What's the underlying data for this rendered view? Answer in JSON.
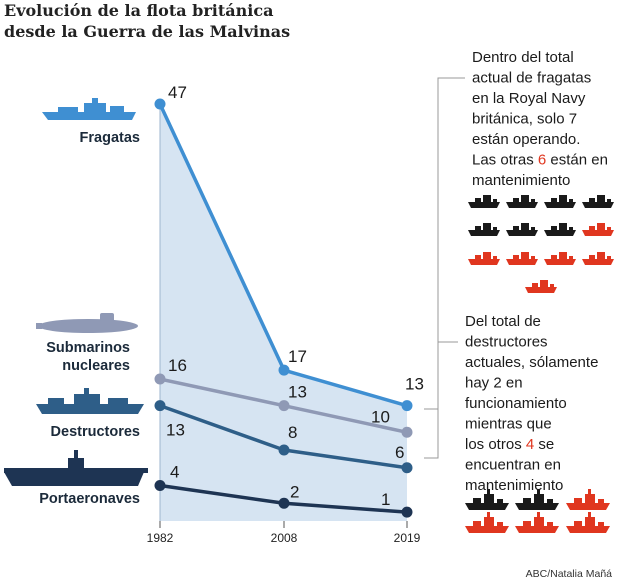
{
  "title_lines": [
    "Evolución de la flota británica",
    "desde la Guerra de las Malvinas"
  ],
  "credit": "ABC/Natalia Mañá",
  "colors": {
    "fragatas": "#3f8fd2",
    "submarinos": "#8f99b5",
    "destructores": "#2e5e88",
    "portaeronaves": "#1e3453",
    "area": "#d6e4f2",
    "ship_operating": "#1a1a1a",
    "ship_maintenance": "#e0361f",
    "ship_icon": "#3f8fd2"
  },
  "icons": {
    "fragata": "frigate-icon",
    "submarino": "submarine-icon",
    "destructor": "destroyer-icon",
    "portaeronaves": "aircraft-carrier-icon"
  },
  "chart_data": {
    "type": "line",
    "title": "Evolución de la flota británica desde la Guerra de las Malvinas",
    "x": [
      "1982",
      "2008",
      "2019"
    ],
    "ylim": [
      0,
      47
    ],
    "grid": false,
    "series": [
      {
        "name": "Fragatas",
        "values": [
          47,
          17,
          13
        ]
      },
      {
        "name": "Submarinos nucleares",
        "values": [
          16,
          13,
          10
        ]
      },
      {
        "name": "Destructores",
        "values": [
          13,
          8,
          6
        ]
      },
      {
        "name": "Portaeronaves",
        "values": [
          4,
          2,
          1
        ]
      }
    ],
    "shaded_series": "Fragatas"
  },
  "labels": {
    "fragatas": [
      "Fragatas"
    ],
    "submarinos": [
      "Submarinos",
      "nucleares"
    ],
    "destructores": [
      "Destructores"
    ],
    "portaeronaves": [
      "Portaeronaves"
    ]
  },
  "annotations": {
    "frigates": {
      "lines": [
        [
          {
            "t": "Dentro del total"
          }
        ],
        [
          {
            "t": "actual de fragatas"
          }
        ],
        [
          {
            "t": "en la Royal Navy"
          }
        ],
        [
          {
            "t": "británica,  solo 7"
          }
        ],
        [
          {
            "t": "están operando."
          }
        ],
        [
          {
            "t": "Las otras "
          },
          {
            "t": "6",
            "red": true
          },
          {
            "t": " están en"
          }
        ],
        [
          {
            "t": "mantenimiento"
          }
        ]
      ],
      "operating": 7,
      "maintenance": 6
    },
    "destroyers": {
      "lines": [
        [
          {
            "t": "Del total de"
          }
        ],
        [
          {
            "t": "destructores"
          }
        ],
        [
          {
            "t": "actuales, sólamente"
          }
        ],
        [
          {
            "t": "hay 2 en"
          }
        ],
        [
          {
            "t": "funcionamiento"
          }
        ],
        [
          {
            "t": "mientras que"
          }
        ],
        [
          {
            "t": "los otros "
          },
          {
            "t": "4",
            "red": true
          },
          {
            "t": " se"
          }
        ],
        [
          {
            "t": "encuentran en"
          }
        ],
        [
          {
            "t": "mantenimiento"
          }
        ]
      ],
      "operating": 2,
      "maintenance": 4
    }
  }
}
